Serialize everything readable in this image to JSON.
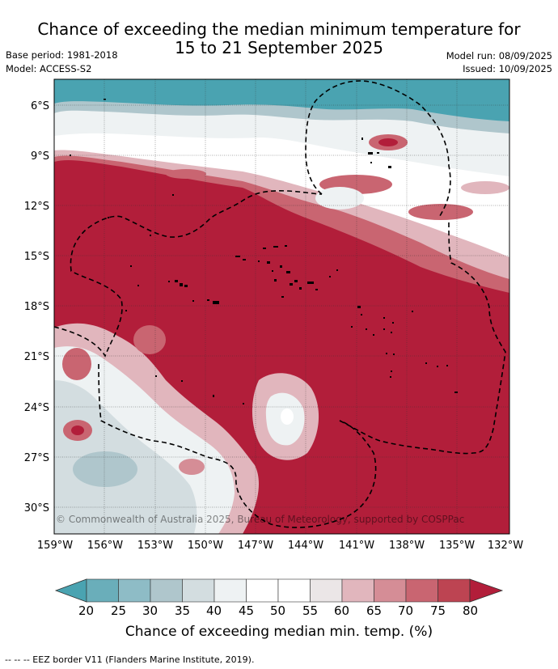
{
  "header": {
    "title_line1": "Chance of exceeding the median minimum temperature for",
    "title_line2": "15 to 21 September 2025",
    "base_period": "Base period: 1981-2018",
    "model": "Model: ACCESS-S2",
    "model_run": "Model run: 08/09/2025",
    "issued": "Issued: 10/09/2025"
  },
  "map": {
    "lat_labels": [
      "6°S",
      "9°S",
      "12°S",
      "15°S",
      "18°S",
      "21°S",
      "24°S",
      "27°S",
      "30°S"
    ],
    "lon_labels": [
      "159°W",
      "156°W",
      "153°W",
      "150°W",
      "147°W",
      "144°W",
      "141°W",
      "138°W",
      "135°W",
      "132°W"
    ],
    "copyright": "© Commonwealth of Australia 2025, Bureau of Meteorology, supported by COSPPac"
  },
  "colorbar": {
    "ticks": [
      "20",
      "25",
      "30",
      "35",
      "40",
      "45",
      "50",
      "55",
      "60",
      "65",
      "70",
      "75",
      "80"
    ],
    "colors": [
      "#4aa3b1",
      "#6aaeba",
      "#8ebcc6",
      "#afc6cc",
      "#d3dde0",
      "#eef2f3",
      "#ffffff",
      "#ffffff",
      "#ebe6e7",
      "#e1b6bd",
      "#d58d96",
      "#c96571",
      "#bd4452",
      "#b21e3a"
    ],
    "title": "Chance of exceeding median min. temp. (%)"
  },
  "footer": {
    "legend": "--  --  -- EEZ border V11 (Flanders Marine Institute, 2019)."
  }
}
